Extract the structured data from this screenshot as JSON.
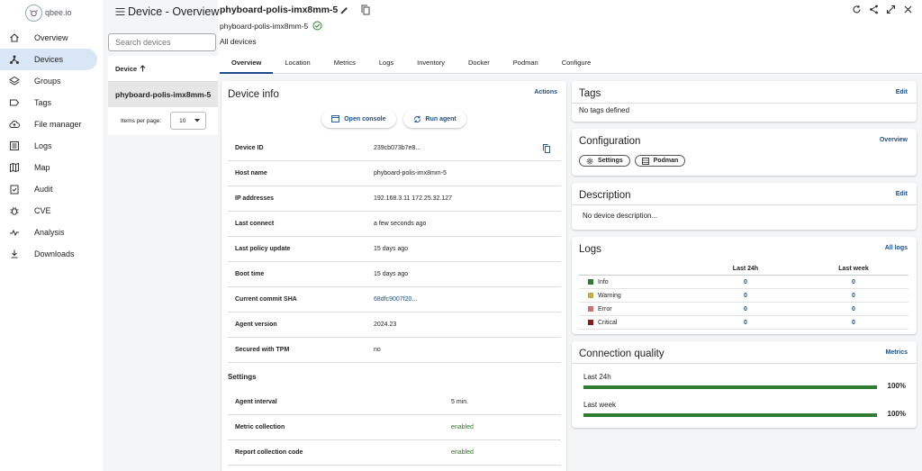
{
  "app": {
    "logo_text": "qbee.io"
  },
  "sidebar": {
    "items": [
      {
        "label": "Overview",
        "icon": "home-icon"
      },
      {
        "label": "Devices",
        "icon": "devices-icon",
        "active": true
      },
      {
        "label": "Groups",
        "icon": "layers-icon"
      },
      {
        "label": "Tags",
        "icon": "tag-icon"
      },
      {
        "label": "File manager",
        "icon": "cloud-upload-icon"
      },
      {
        "label": "Logs",
        "icon": "logs-icon"
      },
      {
        "label": "Map",
        "icon": "map-icon"
      },
      {
        "label": "Audit",
        "icon": "audit-icon"
      },
      {
        "label": "CVE",
        "icon": "bug-icon"
      },
      {
        "label": "Analysis",
        "icon": "analysis-icon"
      },
      {
        "label": "Downloads",
        "icon": "download-icon"
      }
    ]
  },
  "list": {
    "page_title": "Device - Overview",
    "search_placeholder": "Search devices",
    "column_header": "Device",
    "rows": [
      "phyboard-polis-imx8mm-5"
    ],
    "items_per_page_label": "Items per page:",
    "items_per_page": "10"
  },
  "device": {
    "title": "phyboard-polis-imx8mm-5",
    "subtitle": "phyboard-polis-imx8mm-5",
    "breadcrumb": "All devices"
  },
  "tabs": [
    "Overview",
    "Location",
    "Metrics",
    "Logs",
    "Inventory",
    "Docker",
    "Podman",
    "Configure"
  ],
  "info": {
    "title": "Device info",
    "actions_label": "Actions",
    "open_console": "Open console",
    "run_agent": "Run agent",
    "rows": [
      {
        "key": "Device ID",
        "value": "239cb073b7e8..."
      },
      {
        "key": "Host name",
        "value": "phyboard-polis-imx8mm-5"
      },
      {
        "key": "IP addresses",
        "value": "192.168.3.11 172.25.32.127"
      },
      {
        "key": "Last connect",
        "value": "a few seconds ago"
      },
      {
        "key": "Last policy update",
        "value": "15 days ago"
      },
      {
        "key": "Boot time",
        "value": "15 days ago"
      },
      {
        "key": "Current commit SHA",
        "value": "68dfc9007f20..."
      },
      {
        "key": "Agent version",
        "value": "2024.23"
      },
      {
        "key": "Secured with TPM",
        "value": "no"
      }
    ],
    "settings_title": "Settings",
    "settings": [
      {
        "key": "Agent interval",
        "value": "5 min."
      },
      {
        "key": "Metric collection",
        "value": "enabled"
      },
      {
        "key": "Report collection code",
        "value": "enabled"
      }
    ]
  },
  "tags": {
    "title": "Tags",
    "edit": "Edit",
    "empty": "No tags defined"
  },
  "configuration": {
    "title": "Configuration",
    "link": "Overview",
    "chips": [
      "Settings",
      "Podman"
    ]
  },
  "description": {
    "title": "Description",
    "edit": "Edit",
    "text": "No device description..."
  },
  "logs": {
    "title": "Logs",
    "link": "All logs",
    "col_24h": "Last 24h",
    "col_week": "Last week",
    "rows": [
      {
        "level": "Info",
        "color": "#2e7d32",
        "d24": "0",
        "week": "0"
      },
      {
        "level": "Warning",
        "color": "#c9a94a",
        "d24": "0",
        "week": "0"
      },
      {
        "level": "Error",
        "color": "#d07070",
        "d24": "0",
        "week": "0"
      },
      {
        "level": "Critical",
        "color": "#8b1a1a",
        "d24": "0",
        "week": "0"
      }
    ]
  },
  "connection": {
    "title": "Connection quality",
    "link": "Metrics",
    "rows": [
      {
        "label": "Last 24h",
        "percent": "100%",
        "value": 100
      },
      {
        "label": "Last week",
        "percent": "100%",
        "value": 100
      }
    ]
  },
  "colors": {
    "accent": "#1a4f8b",
    "active_nav": "#d9e6f5",
    "success": "#2e7d32"
  }
}
